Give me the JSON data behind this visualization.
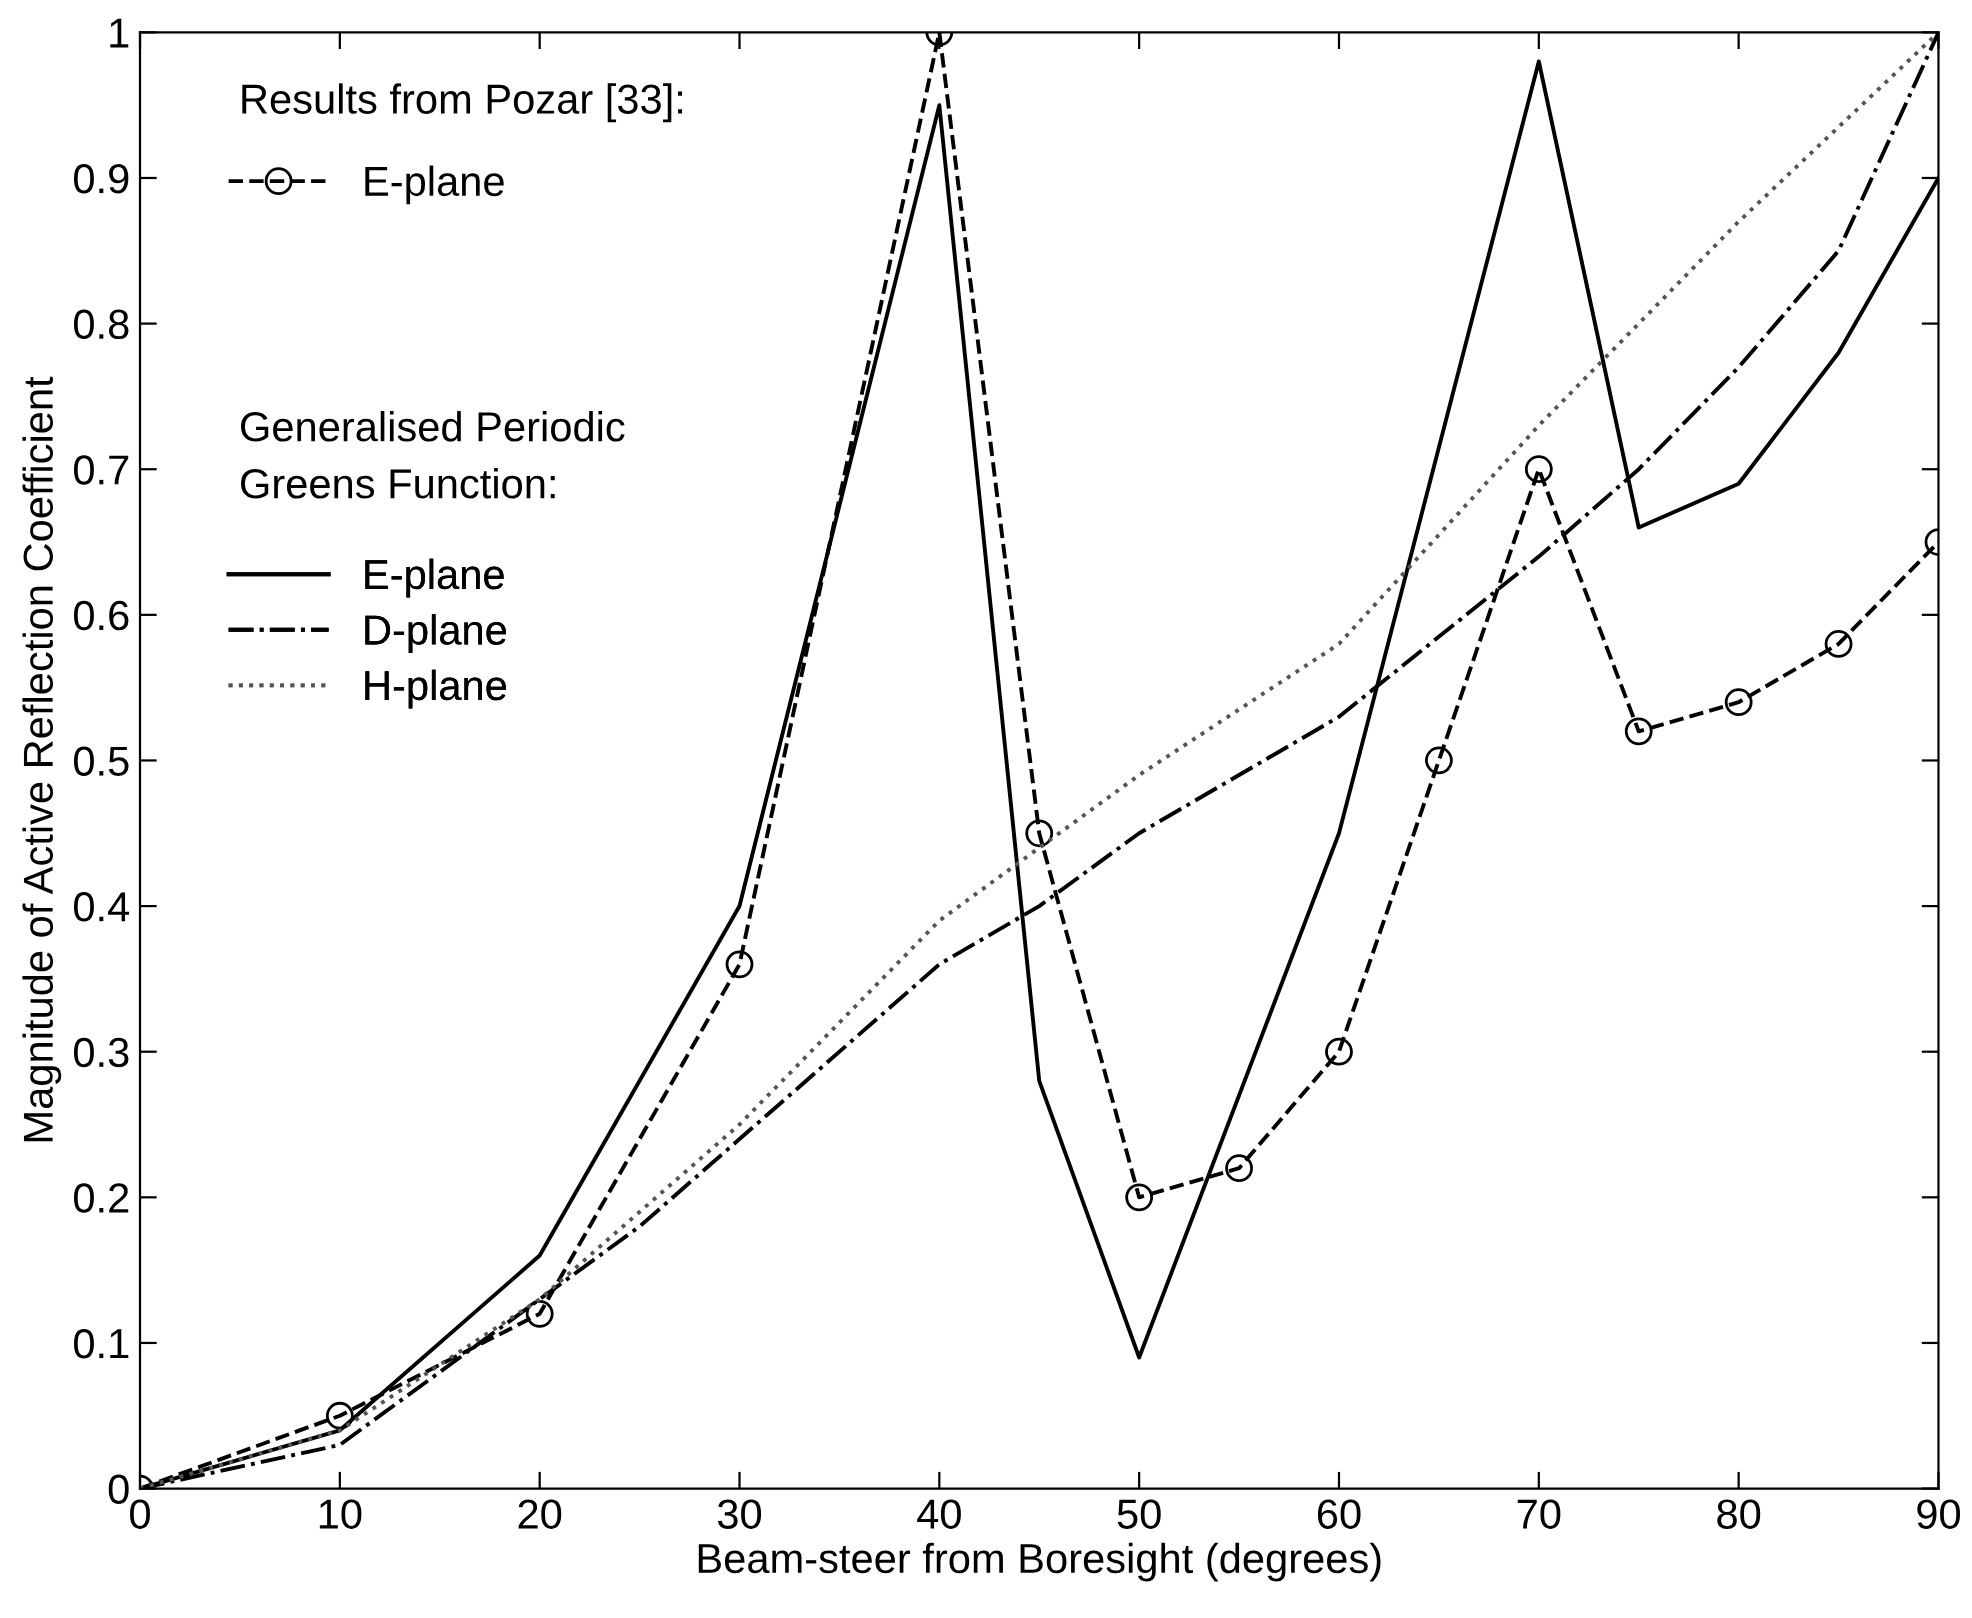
{
  "chart_data": {
    "type": "line",
    "xlabel": "Beam-steer from Boresight (degrees)",
    "ylabel": "Magnitude of Active Reflection Coefficient",
    "xlim": [
      0,
      90
    ],
    "xticks": [
      0,
      10,
      20,
      30,
      40,
      50,
      60,
      70,
      80,
      90
    ],
    "ylim": [
      0,
      1
    ],
    "yticks": [
      0,
      0.1,
      0.2,
      0.3,
      0.4,
      0.5,
      0.6,
      0.7,
      0.8,
      0.9,
      1
    ],
    "grid": false,
    "legend": "top left",
    "annotations": [
      "Results from Pozar [33]:",
      "Generalised Periodic\nGreens Function:"
    ],
    "series": [
      {
        "name": "E-plane",
        "color": "#000000",
        "marker": "circle",
        "line_style": "dashed",
        "x": [
          0,
          10,
          20,
          30,
          40,
          45,
          50,
          55,
          60,
          65,
          70,
          75,
          80,
          85,
          90
        ],
        "values": [
          0,
          0.05,
          0.12,
          0.36,
          1.0,
          0.45,
          0.2,
          0.22,
          0.3,
          0.5,
          0.7,
          0.52,
          0.54,
          0.58,
          0.65
        ]
      },
      {
        "name": "E-plane",
        "color": "#000000",
        "marker": "none",
        "line_style": "solid",
        "x": [
          0,
          10,
          20,
          30,
          40,
          45,
          50,
          60,
          70,
          75,
          80,
          85,
          90
        ],
        "values": [
          0,
          0.04,
          0.16,
          0.4,
          0.95,
          0.28,
          0.09,
          0.45,
          0.98,
          0.66,
          0.69,
          0.78,
          0.9
        ]
      },
      {
        "name": "D-plane",
        "color": "#000000",
        "marker": "none",
        "line_style": "dashdot",
        "x": [
          0,
          10,
          20,
          25,
          30,
          40,
          45,
          50,
          60,
          70,
          75,
          80,
          85,
          90
        ],
        "values": [
          0,
          0.03,
          0.13,
          0.18,
          0.24,
          0.36,
          0.4,
          0.45,
          0.53,
          0.64,
          0.7,
          0.77,
          0.85,
          1.0
        ]
      },
      {
        "name": "H-plane",
        "color": "#555555",
        "marker": "none",
        "line_style": "dotted",
        "x": [
          0,
          10,
          20,
          30,
          40,
          50,
          60,
          70,
          80,
          90
        ],
        "values": [
          0,
          0.04,
          0.13,
          0.25,
          0.39,
          0.49,
          0.58,
          0.73,
          0.87,
          1.0
        ]
      }
    ]
  }
}
